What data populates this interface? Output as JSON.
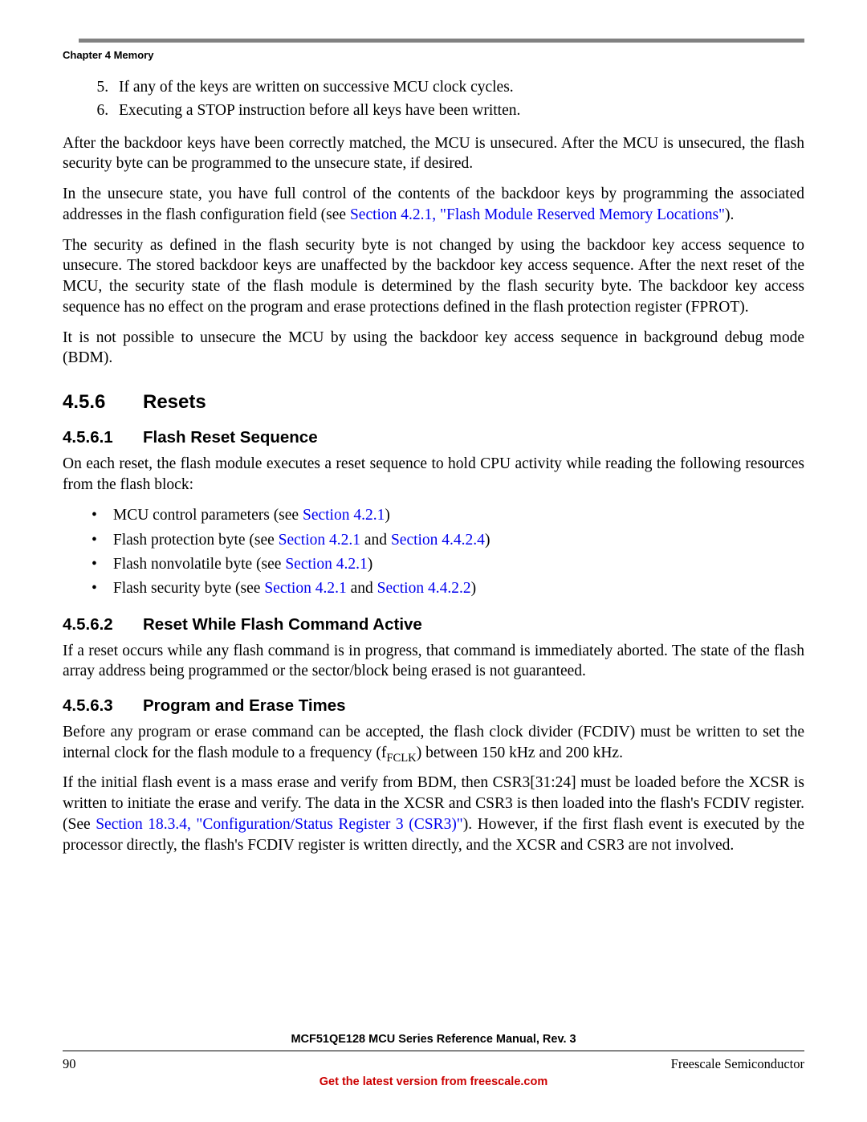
{
  "colors": {
    "rule_gray": "#818181",
    "link_blue": "#0000ee",
    "footer_red": "#cc0000",
    "text": "#000000",
    "background": "#ffffff"
  },
  "header": {
    "chapter": "Chapter 4 Memory"
  },
  "list5": {
    "item5": "If any of the keys are written on successive MCU clock cycles.",
    "item6": "Executing a STOP instruction before all keys have been written."
  },
  "para1": "After the backdoor keys have been correctly matched, the MCU is unsecured. After the MCU is unsecured, the flash security byte can be programmed to the unsecure state, if desired.",
  "para2_a": "In the unsecure state, you have full control of the contents of the backdoor keys by programming the associated addresses in the flash configuration field (see ",
  "para2_link": "Section 4.2.1, \"Flash Module Reserved Memory Locations\"",
  "para2_b": ").",
  "para3": "The security as defined in the flash security byte is not changed by using the backdoor key access sequence to unsecure. The stored backdoor keys are unaffected by the backdoor key access sequence. After the next reset of the MCU, the security state of the flash module is determined by the flash security byte. The backdoor key access sequence has no effect on the program and erase protections defined in the flash protection register (FPROT).",
  "para4": "It is not possible to unsecure the MCU by using the backdoor key access sequence in background debug mode (BDM).",
  "sec456": {
    "num": "4.5.6",
    "title": "Resets"
  },
  "sec4561": {
    "num": "4.5.6.1",
    "title": "Flash Reset Sequence"
  },
  "para5": "On each reset, the flash module executes a reset sequence to hold CPU activity while reading the following resources from the flash block:",
  "bullets": {
    "b1a": "MCU control parameters (see ",
    "b1l": "Section 4.2.1",
    "b1b": ")",
    "b2a": "Flash protection byte (see ",
    "b2l1": "Section 4.2.1",
    "b2m": " and ",
    "b2l2": "Section 4.4.2.4",
    "b2b": ")",
    "b3a": "Flash nonvolatile byte (see ",
    "b3l": "Section 4.2.1",
    "b3b": ")",
    "b4a": "Flash security byte (see ",
    "b4l1": "Section 4.2.1",
    "b4m": " and ",
    "b4l2": "Section 4.4.2.2",
    "b4b": ")"
  },
  "sec4562": {
    "num": "4.5.6.2",
    "title": "Reset While Flash Command Active"
  },
  "para6": "If a reset occurs while any flash command is in progress, that command is immediately aborted. The state of the flash array address being programmed or the sector/block being erased is not guaranteed.",
  "sec4563": {
    "num": "4.5.6.3",
    "title": "Program and Erase Times"
  },
  "para7a": "Before any program or erase command can be accepted, the flash clock divider (FCDIV) must be written to set the internal clock for the flash module to a frequency (f",
  "para7sub": "FCLK",
  "para7b": ") between 150 kHz and 200 kHz.",
  "para8a": "If the initial flash event is a mass erase and verify from BDM, then CSR3[31:24] must be loaded before the XCSR is written to initiate the erase and verify. The data in the XCSR and CSR3 is then loaded into the flash's FCDIV register. (See ",
  "para8link": "Section 18.3.4, \"Configuration/Status Register 3 (CSR3)\"",
  "para8b": "). However, if the first flash event is executed by the processor directly, the flash's FCDIV register is written directly, and the XCSR and CSR3 are not involved.",
  "footer": {
    "title": "MCF51QE128 MCU Series Reference Manual, Rev. 3",
    "page": "90",
    "company": "Freescale Semiconductor",
    "link": "Get the latest version from freescale.com"
  }
}
